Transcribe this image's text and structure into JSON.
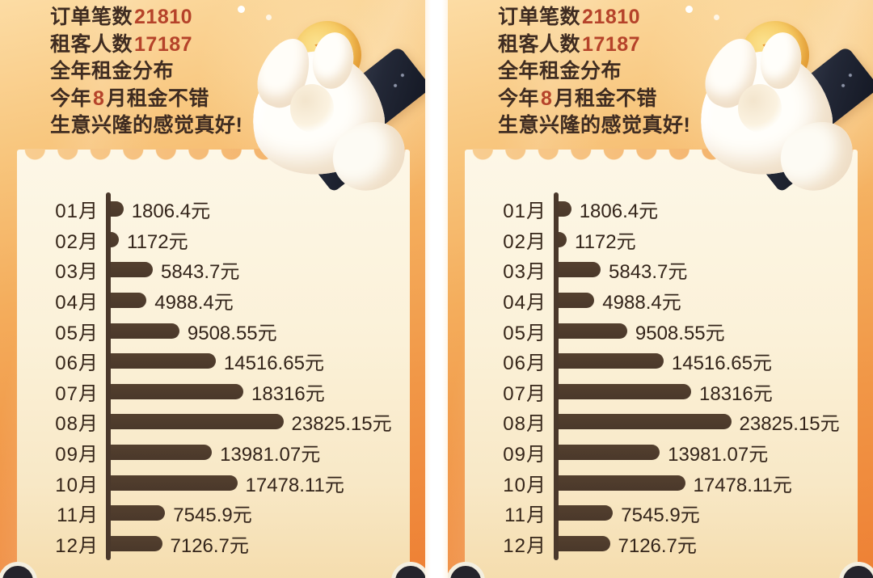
{
  "panel_count": 2,
  "header": {
    "lines": [
      {
        "pre": "订单笔数",
        "num": "21810",
        "post": ""
      },
      {
        "pre": "租客人数",
        "num": "17187",
        "post": ""
      },
      {
        "pre": "全年租金分布",
        "num": "",
        "post": ""
      },
      {
        "pre": "今年",
        "num": "8",
        "post": "月租金不错"
      },
      {
        "pre": "生意兴隆的感觉真好!",
        "num": "",
        "post": ""
      }
    ]
  },
  "illustration": {
    "coin_symbol": "¥"
  },
  "chart_data": {
    "type": "bar",
    "orientation": "horizontal",
    "title": "全年租金分布",
    "categories": [
      "01月",
      "02月",
      "03月",
      "04月",
      "05月",
      "06月",
      "07月",
      "08月",
      "09月",
      "10月",
      "11月",
      "12月"
    ],
    "values": [
      1806.4,
      1172,
      5843.7,
      4988.4,
      9508.55,
      14516.65,
      18316,
      23825.15,
      13981.07,
      17478.11,
      7545.9,
      7126.7
    ],
    "value_labels": [
      "1806.4元",
      "1172元",
      "5843.7元",
      "4988.4元",
      "9508.55元",
      "14516.65元",
      "18316元",
      "23825.15元",
      "13981.07元",
      "17478.11元",
      "7545.9元",
      "7126.7元"
    ],
    "unit": "元",
    "xlabel": "",
    "ylabel": "",
    "xlim": [
      0,
      23825.15
    ],
    "grid": false,
    "legend": false,
    "max_month": "08月"
  },
  "colors": {
    "background_top": "#FCDCA4",
    "background_bottom": "#EE8034",
    "card": "#FBF1D8",
    "bar": "#4A382A",
    "axis": "#4A382B",
    "text_dark": "#3F2C21",
    "number_red": "#B5432A",
    "chart_text": "#33241A",
    "divider": "#FFFFFF",
    "scallop": "#F2A75A",
    "coin_gold": "#F7CC66",
    "device_navy": "#232837",
    "wheel_dark": "#25242C"
  }
}
